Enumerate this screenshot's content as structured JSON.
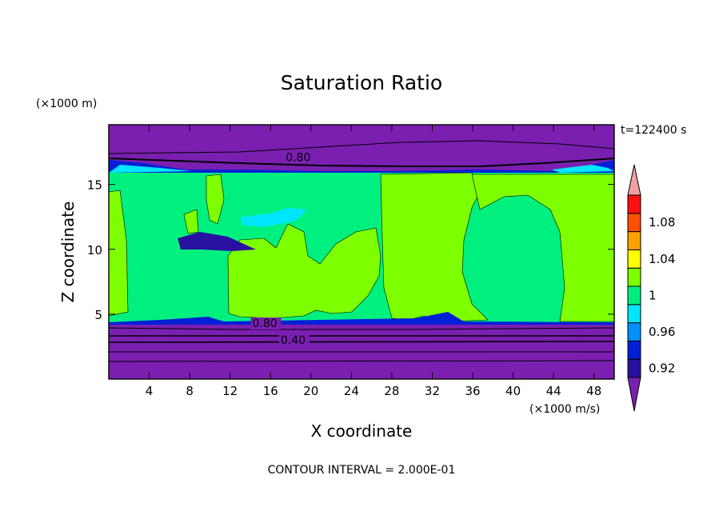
{
  "chart_data": {
    "type": "contour",
    "title": "Saturation Ratio",
    "xlabel": "X coordinate",
    "ylabel": "Z coordinate",
    "x_units": "(×1000 m/s)",
    "y_units": "(×1000 m)",
    "time_label": "t=122400 s",
    "footer": "CONTOUR INTERVAL = 2.000E-01",
    "xlim": [
      0,
      50
    ],
    "ylim": [
      0,
      19.6
    ],
    "x_ticks": [
      4,
      8,
      12,
      16,
      20,
      24,
      28,
      32,
      36,
      40,
      44,
      48
    ],
    "y_ticks": [
      5,
      10,
      15
    ],
    "contour_labels": [
      {
        "text": "0.80",
        "x": 17.5,
        "y": 16.8
      },
      {
        "text": "0.80",
        "x": 14.2,
        "y": 4.0
      },
      {
        "text": "0.40",
        "x": 17.0,
        "y": 2.7
      }
    ],
    "colorbar": {
      "levels": [
        0.92,
        0.94,
        0.96,
        0.98,
        1.0,
        1.02,
        1.04,
        1.06,
        1.08,
        1.1
      ],
      "tick_labels": [
        "0.92",
        "0.96",
        "1",
        "1.04",
        "1.08"
      ],
      "colors": [
        "#7a1fb0",
        "#2a10a0",
        "#0020d8",
        "#0090ff",
        "#00e6ff",
        "#00f080",
        "#7eff00",
        "#ffff00",
        "#ffa000",
        "#ff5000",
        "#ff1010",
        "#f0a0a0"
      ]
    },
    "regions": {
      "upper_dry_top": 19.6,
      "tropopause_band": 16.4,
      "moist_layer_top": 16.0,
      "moist_layer_bottom": 4.5,
      "boundary_layer_top": 4.2
    }
  }
}
